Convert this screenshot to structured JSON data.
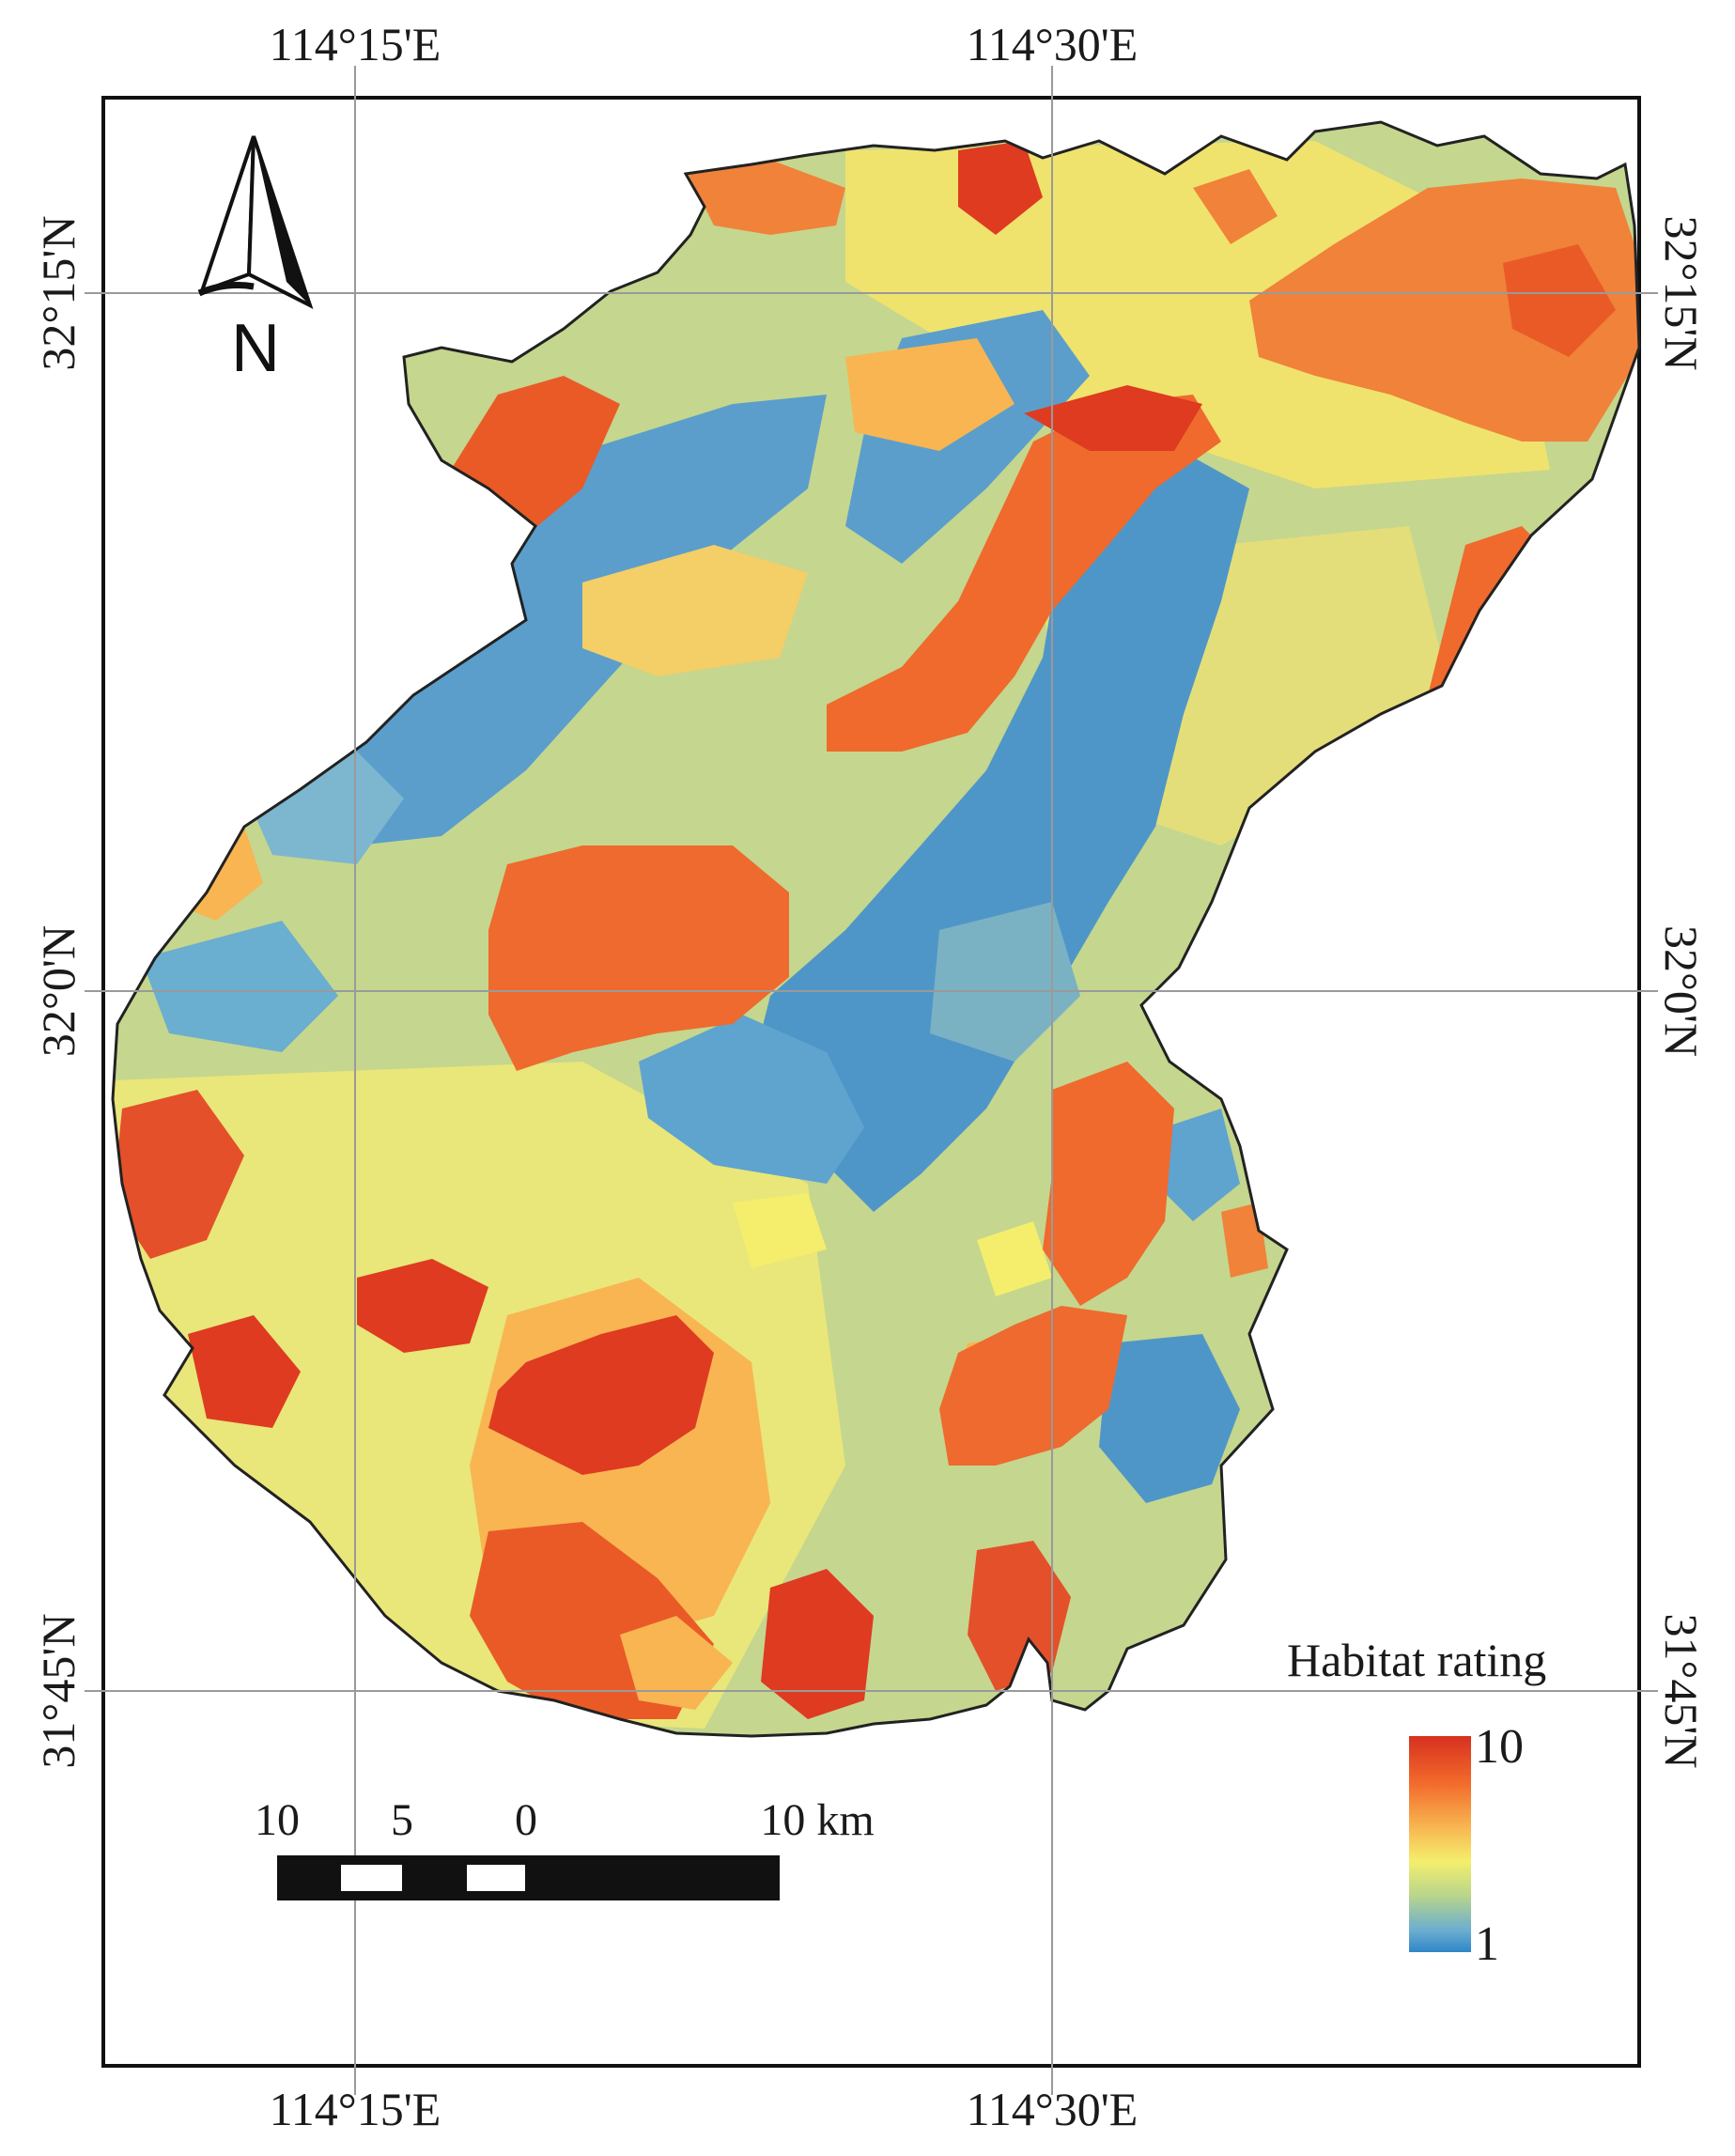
{
  "graticule": {
    "lon_left": "114°15'E",
    "lon_right": "114°30'E",
    "lat_top": "32°15'N",
    "lat_mid": "32°0'N",
    "lat_bottom": "31°45'N"
  },
  "north_arrow": {
    "label": "N"
  },
  "legend": {
    "title": "Habitat rating",
    "max_label": "10",
    "min_label": "1",
    "colors": [
      "#d7301f",
      "#f26b2c",
      "#f8b551",
      "#f4ee6c",
      "#b8d58c",
      "#6aaed0",
      "#2f86c8"
    ]
  },
  "scale_bar": {
    "labels": [
      "10",
      "5",
      "0",
      "10 km"
    ]
  }
}
